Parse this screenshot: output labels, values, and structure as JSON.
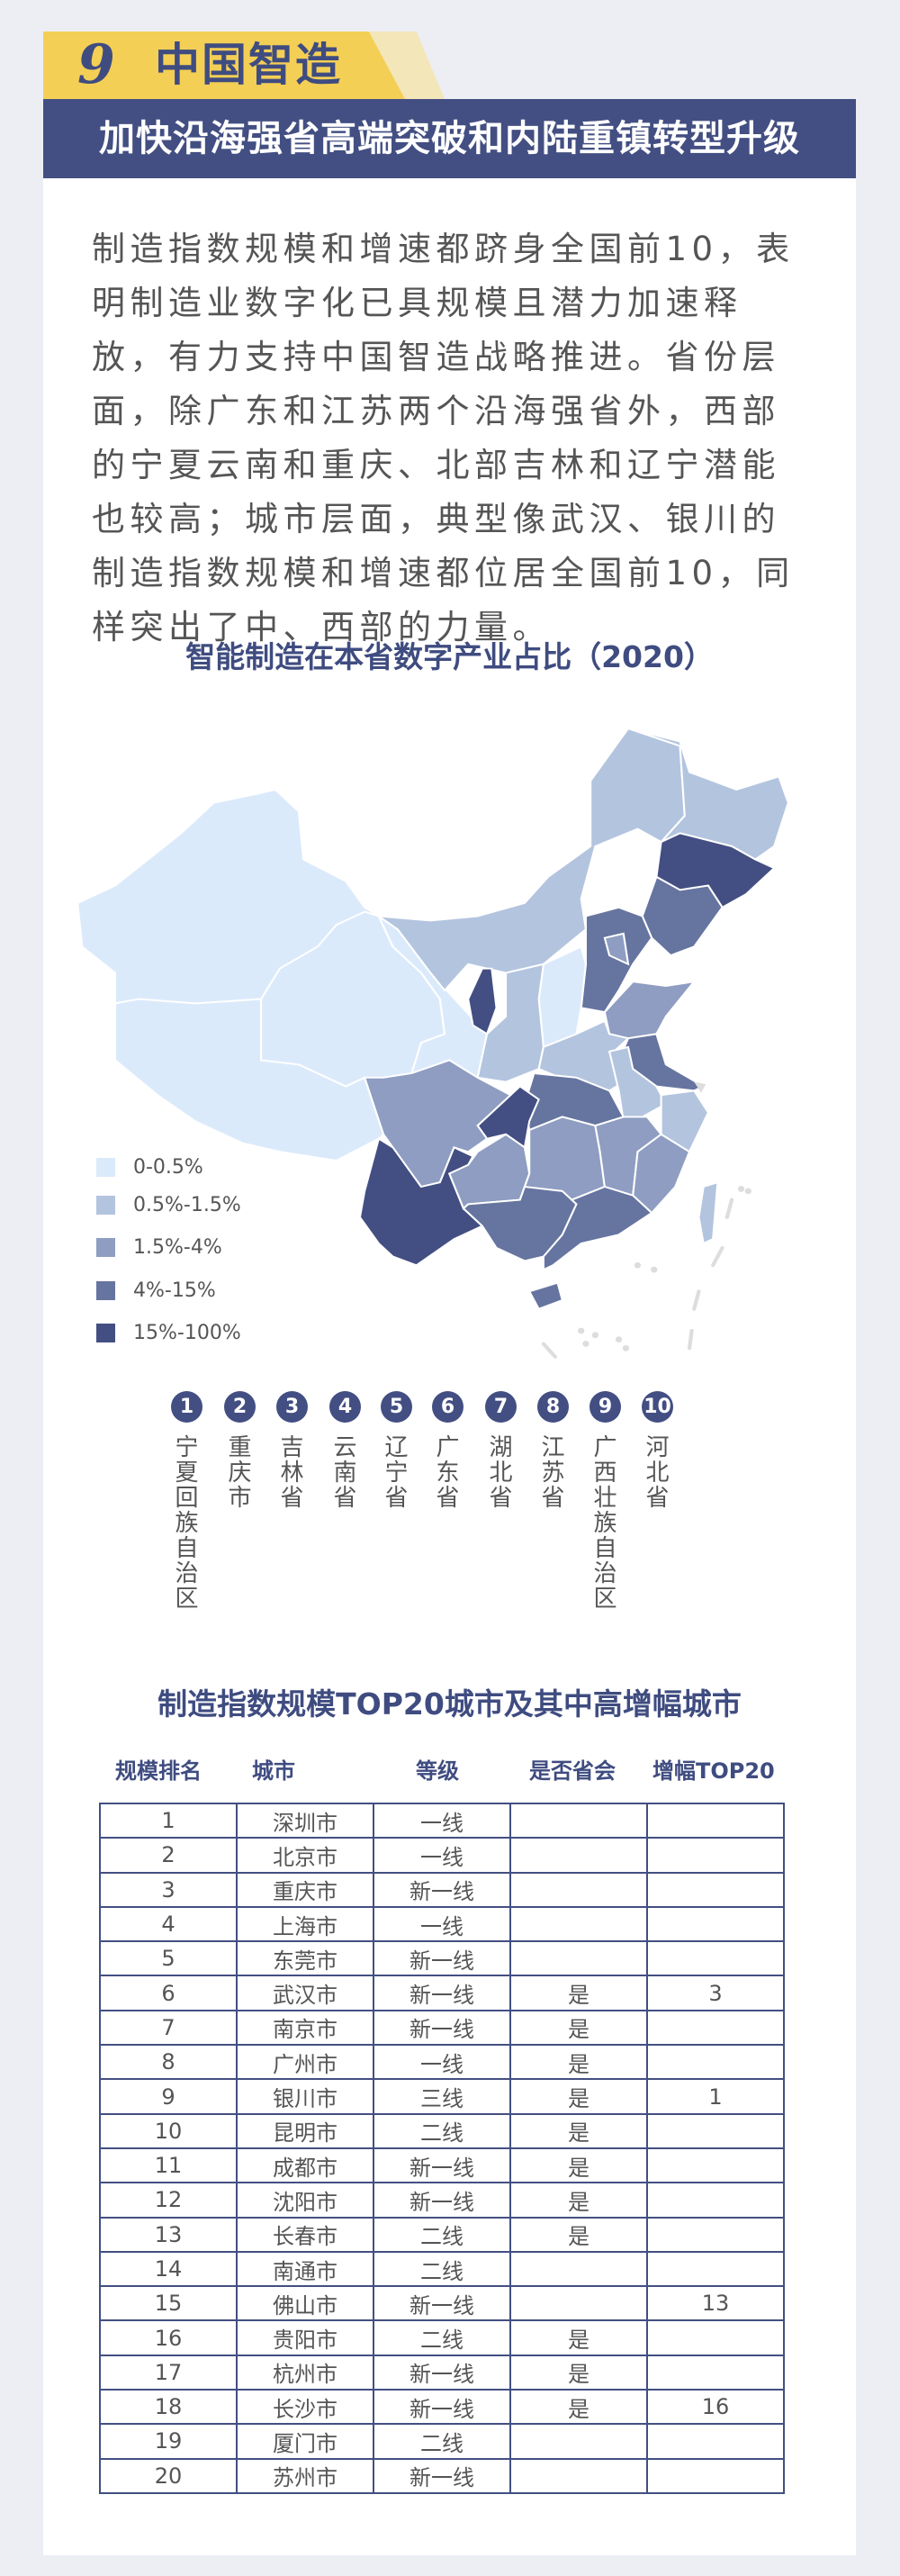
{
  "header": {
    "number": "9",
    "title": "中国智造",
    "subtitle": "加快沿海强省高端突破和内陆重镇转型升级"
  },
  "intro": "制造指数规模和增速都跻身全国前10，表明制造业数字化已具规模且潜力加速释放，有力支持中国智造战略推进。省份层面，除广东和江苏两个沿海强省外，西部的宁夏云南和重庆、北部吉林和辽宁潜能也较高；城市层面，典型像武汉、银川的制造指数规模和增速都位居全国前10，同样突出了中、西部的力量。",
  "map": {
    "title": "智能制造在本省数字产业占比（2020）",
    "colors": [
      "#dbeafb",
      "#b3c4df",
      "#8e9dc1",
      "#6674a0",
      "#434f82"
    ],
    "legend": [
      "0-0.5%",
      "0.5%-1.5%",
      "1.5%-4%",
      "4%-15%",
      "15%-100%"
    ]
  },
  "top10": [
    {
      "rank": "1",
      "name": "宁夏回族自治区"
    },
    {
      "rank": "2",
      "name": "重庆市"
    },
    {
      "rank": "3",
      "name": "吉林省"
    },
    {
      "rank": "4",
      "name": "云南省"
    },
    {
      "rank": "5",
      "name": "辽宁省"
    },
    {
      "rank": "6",
      "name": "广东省"
    },
    {
      "rank": "7",
      "name": "湖北省"
    },
    {
      "rank": "8",
      "name": "江苏省"
    },
    {
      "rank": "9",
      "name": "广西壮族自治区"
    },
    {
      "rank": "10",
      "name": "河北省"
    }
  ],
  "table": {
    "title": "制造指数规模TOP20城市及其中高增幅城市",
    "headers": [
      "规模排名",
      "城市",
      "等级",
      "是否省会",
      "增幅TOP20"
    ],
    "rows": [
      [
        "1",
        "深圳市",
        "一线",
        "",
        ""
      ],
      [
        "2",
        "北京市",
        "一线",
        "",
        ""
      ],
      [
        "3",
        "重庆市",
        "新一线",
        "",
        ""
      ],
      [
        "4",
        "上海市",
        "一线",
        "",
        ""
      ],
      [
        "5",
        "东莞市",
        "新一线",
        "",
        ""
      ],
      [
        "6",
        "武汉市",
        "新一线",
        "是",
        "3"
      ],
      [
        "7",
        "南京市",
        "新一线",
        "是",
        ""
      ],
      [
        "8",
        "广州市",
        "一线",
        "是",
        ""
      ],
      [
        "9",
        "银川市",
        "三线",
        "是",
        "1"
      ],
      [
        "10",
        "昆明市",
        "二线",
        "是",
        ""
      ],
      [
        "11",
        "成都市",
        "新一线",
        "是",
        ""
      ],
      [
        "12",
        "沈阳市",
        "新一线",
        "是",
        ""
      ],
      [
        "13",
        "长春市",
        "二线",
        "是",
        ""
      ],
      [
        "14",
        "南通市",
        "二线",
        "",
        ""
      ],
      [
        "15",
        "佛山市",
        "新一线",
        "",
        "13"
      ],
      [
        "16",
        "贵阳市",
        "二线",
        "是",
        ""
      ],
      [
        "17",
        "杭州市",
        "新一线",
        "是",
        ""
      ],
      [
        "18",
        "长沙市",
        "新一线",
        "是",
        "16"
      ],
      [
        "19",
        "厦门市",
        "二线",
        "",
        ""
      ],
      [
        "20",
        "苏州市",
        "新一线",
        "",
        ""
      ]
    ]
  }
}
